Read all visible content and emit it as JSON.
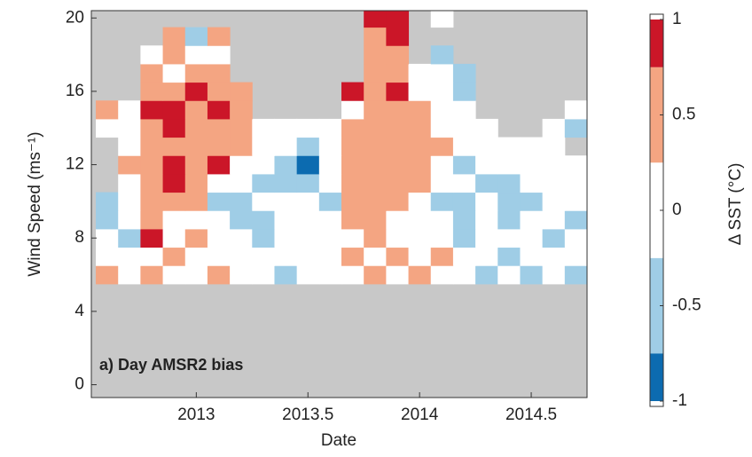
{
  "chart_data": {
    "type": "heatmap",
    "annotation": "a) Day AMSR2 bias",
    "xlabel": "Date",
    "ylabel": "Wind Speed (ms⁻¹)",
    "colorbar_label": "Δ SST (°C)",
    "xlim": [
      2012.53,
      2014.75
    ],
    "xticks": [
      2013,
      2013.5,
      2014,
      2014.5
    ],
    "ylim": [
      -0.7,
      20.4
    ],
    "yticks": [
      0,
      4,
      8,
      12,
      16,
      20
    ],
    "clim": [
      -1,
      1
    ],
    "cticks": [
      -1,
      -0.5,
      0,
      0.5,
      1
    ],
    "color_bounds": [
      -1,
      -0.75,
      -0.25,
      0.25,
      0.75,
      1
    ],
    "colors": [
      "#0c6bb0",
      "#9fcde6",
      "#ffffff",
      "#f4a582",
      "#cb1628"
    ],
    "no_data_color": "#c8c8c8",
    "x_edges": [
      2012.55,
      2012.65,
      2012.75,
      2012.85,
      2012.95,
      2013.05,
      2013.15,
      2013.25,
      2013.35,
      2013.45,
      2013.55,
      2013.65,
      2013.75,
      2013.85,
      2013.95,
      2014.05,
      2014.15,
      2014.25,
      2014.35,
      2014.45,
      2014.55,
      2014.65,
      2014.75
    ],
    "y_edges": [
      5.5,
      6.5,
      7.5,
      8.5,
      9.5,
      10.5,
      11.5,
      12.5,
      13.5,
      14.5,
      15.5,
      16.5,
      17.5,
      18.5,
      19.5,
      20.5
    ],
    "z": [
      [
        0.5,
        0,
        0.5,
        0,
        0,
        0.5,
        0,
        0,
        -0.5,
        0,
        0,
        0,
        0.5,
        0,
        0.5,
        0,
        0,
        -0.5,
        0,
        -0.5,
        0,
        -0.5
      ],
      [
        0,
        0,
        0,
        0.5,
        0,
        0,
        0,
        0,
        0,
        0,
        0,
        0.5,
        0,
        0.5,
        0,
        0.5,
        0,
        0,
        -0.5,
        0,
        0,
        0
      ],
      [
        0,
        -0.5,
        0.9,
        0,
        0.5,
        0,
        0,
        -0.5,
        0,
        0,
        0,
        0,
        0.5,
        0,
        0,
        0,
        -0.5,
        0,
        0,
        0,
        -0.5,
        0
      ],
      [
        -0.5,
        0,
        0.5,
        0,
        0,
        0,
        -0.5,
        -0.5,
        0,
        0,
        0,
        0.5,
        0.5,
        0,
        0,
        0,
        -0.5,
        0,
        -0.5,
        0,
        0,
        -0.5
      ],
      [
        -0.5,
        0,
        0.5,
        0.5,
        0.5,
        -0.5,
        -0.5,
        0,
        0,
        0,
        -0.5,
        0.5,
        0.5,
        0.5,
        0,
        -0.5,
        -0.5,
        0,
        -0.5,
        -0.5,
        0,
        0
      ],
      [
        null,
        0,
        0.5,
        0.9,
        0.5,
        0,
        0,
        -0.5,
        -0.5,
        -0.5,
        0,
        0.5,
        0.5,
        0.5,
        0.5,
        0,
        0,
        -0.5,
        -0.5,
        0,
        0,
        0
      ],
      [
        null,
        0.5,
        0.5,
        0.9,
        0.5,
        0.9,
        0,
        0,
        -0.5,
        -0.9,
        0,
        0.5,
        0.5,
        0.5,
        0.5,
        0,
        -0.5,
        0,
        0,
        0,
        0,
        0
      ],
      [
        null,
        0,
        0.5,
        0.5,
        0.5,
        0.5,
        0.5,
        0,
        0,
        -0.5,
        0,
        0.5,
        0.5,
        0.5,
        0.5,
        0.5,
        0,
        0,
        0,
        0,
        0,
        null
      ],
      [
        0,
        0,
        0.5,
        0.9,
        0.5,
        0.5,
        0.5,
        0,
        0,
        0,
        0,
        0.5,
        0.5,
        0.5,
        0.5,
        0,
        0,
        0,
        null,
        null,
        0,
        -0.5
      ],
      [
        0.5,
        0,
        0.9,
        0.9,
        0.5,
        0.9,
        0.5,
        null,
        null,
        null,
        null,
        0,
        0.5,
        0.5,
        0.5,
        0,
        0,
        null,
        null,
        null,
        null,
        0
      ],
      [
        null,
        null,
        0.5,
        0.5,
        0.9,
        0.5,
        0.5,
        null,
        null,
        null,
        null,
        0.9,
        0.5,
        0.9,
        0,
        0,
        -0.5,
        null,
        null,
        null,
        null,
        null
      ],
      [
        null,
        null,
        0.5,
        0,
        0.5,
        0.5,
        null,
        null,
        null,
        null,
        null,
        null,
        0.5,
        0.5,
        0,
        0,
        -0.5,
        null,
        null,
        null,
        null,
        null
      ],
      [
        null,
        null,
        0,
        0.5,
        0,
        0,
        null,
        null,
        null,
        null,
        null,
        null,
        0.5,
        0.5,
        null,
        -0.5,
        null,
        null,
        null,
        null,
        null,
        null
      ],
      [
        null,
        null,
        null,
        0.5,
        -0.5,
        0.5,
        null,
        null,
        null,
        null,
        null,
        null,
        0.5,
        0.9,
        null,
        null,
        null,
        null,
        null,
        null,
        null,
        null
      ],
      [
        null,
        null,
        null,
        null,
        null,
        null,
        null,
        null,
        null,
        null,
        null,
        null,
        0.9,
        0.9,
        null,
        0,
        null,
        null,
        null,
        null,
        null,
        null
      ]
    ]
  }
}
